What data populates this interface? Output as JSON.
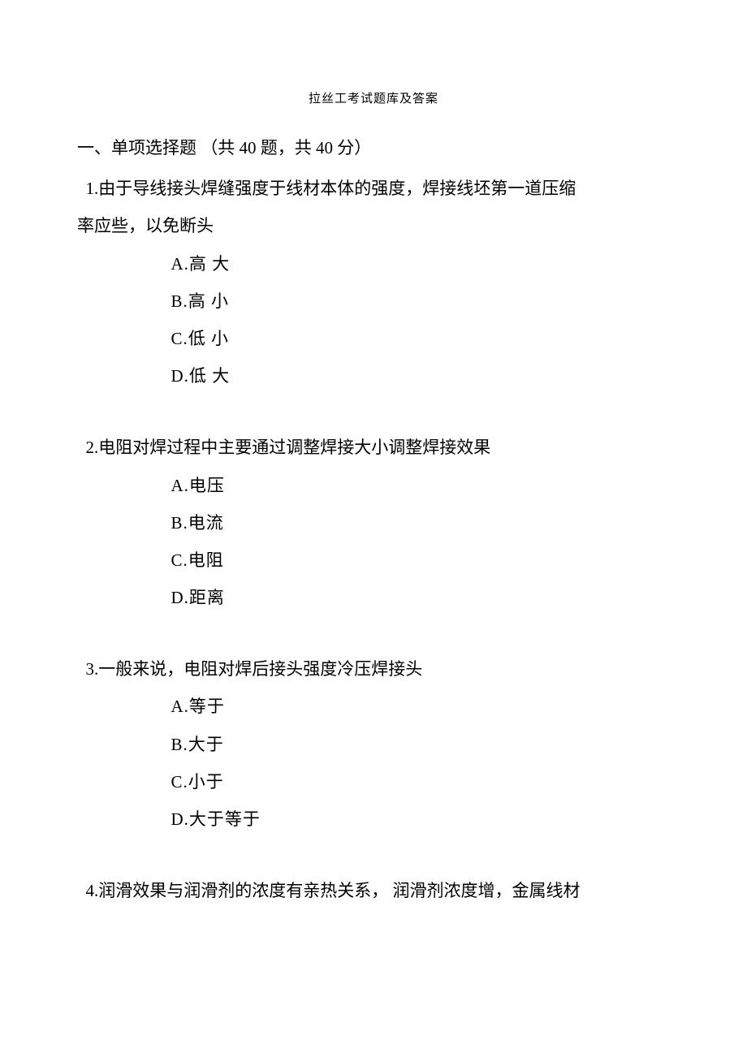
{
  "document": {
    "title": "拉丝工考试题库及答案",
    "section_header": "一、单项选择题 （共 40 题，共 40 分）",
    "questions": [
      {
        "text_line1": " 1.由于导线接头焊缝强度于线材本体的强度，焊接线坯第一道压缩",
        "text_line2": "率应些，以免断头",
        "options": [
          "A.高 大",
          "B.高 小",
          "C.低 小",
          "D.低 大"
        ]
      },
      {
        "text_line1": " 2.电阻对焊过程中主要通过调整焊接大小调整焊接效果",
        "text_line2": "",
        "options": [
          "A.电压",
          "B.电流",
          "C.电阻",
          "D.距离"
        ]
      },
      {
        "text_line1": " 3.一般来说，电阻对焊后接头强度冷压焊接头",
        "text_line2": "",
        "options": [
          "A.等于",
          "B.大于",
          "C.小于",
          "D.大于等于"
        ]
      },
      {
        "text_line1": " 4.润滑效果与润滑剂的浓度有亲热关系， 润滑剂浓度增，金属线材",
        "text_line2": "",
        "options": []
      }
    ]
  }
}
